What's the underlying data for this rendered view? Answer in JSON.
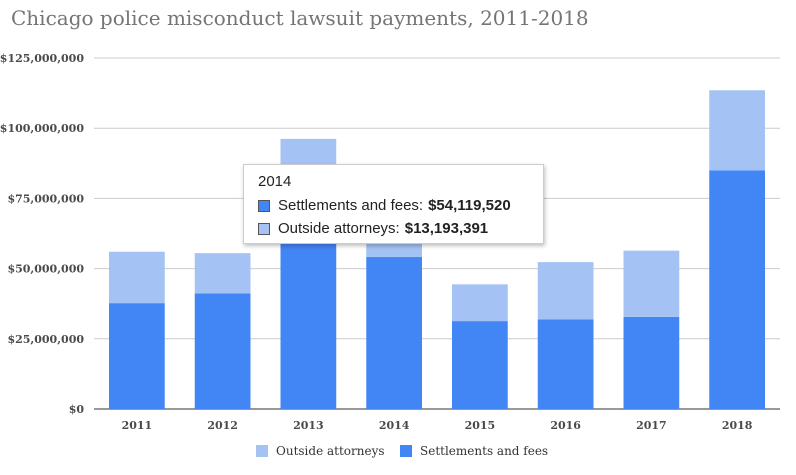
{
  "chart_data": {
    "type": "bar",
    "stacked": true,
    "title": "Chicago police misconduct lawsuit payments, 2011-2018",
    "categories": [
      "2011",
      "2012",
      "2013",
      "2014",
      "2015",
      "2016",
      "2017",
      "2018"
    ],
    "series": [
      {
        "name": "Settlements and fees",
        "color": "#4285f4",
        "values": [
          37700000,
          41200000,
          60000000,
          54119520,
          31300000,
          31900000,
          32800000,
          85000000
        ]
      },
      {
        "name": "Outside attorneys",
        "color": "#a4c2f4",
        "values": [
          18300000,
          14300000,
          36200000,
          13193391,
          13100000,
          20400000,
          23600000,
          28500000
        ]
      }
    ],
    "ylim": [
      0,
      125000000
    ],
    "yticks": [
      "$0",
      "$25,000,000",
      "$50,000,000",
      "$75,000,000",
      "$100,000,000",
      "$125,000,000"
    ],
    "legend": {
      "position": "bottom",
      "items": [
        {
          "name": "Outside attorneys",
          "color": "#a4c2f4"
        },
        {
          "name": "Settlements and fees",
          "color": "#4285f4"
        }
      ]
    },
    "grid": true
  },
  "tooltip": {
    "title": "2014",
    "rows": [
      {
        "label": "Settlements and fees:",
        "value": "$54,119,520",
        "color": "#4285f4"
      },
      {
        "label": "Outside attorneys:",
        "value": "$13,193,391",
        "color": "#a4c2f4"
      }
    ]
  }
}
